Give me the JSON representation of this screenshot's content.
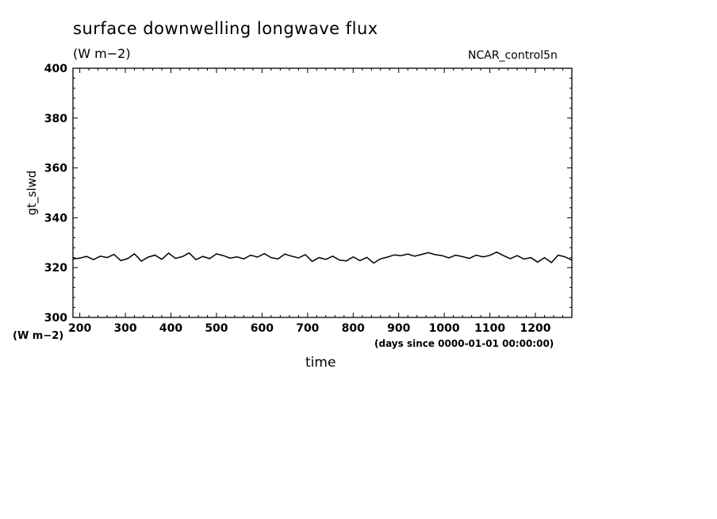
{
  "header": {
    "title": "surface downwelling longwave flux",
    "units": "(W m−2)",
    "run_name": "NCAR_control5n"
  },
  "axes": {
    "ylabel": "gt_slwd",
    "yunits": "(W m−2)",
    "xlabel": "time",
    "xunits": "(days since 0000-01-01 00:00:00)"
  },
  "chart_data": {
    "type": "line",
    "title": "surface downwelling longwave flux",
    "subtitle": "(W m−2)",
    "xlabel": "time",
    "ylabel": "gt_slwd",
    "xlim": [
      185,
      1280
    ],
    "ylim": [
      300,
      400
    ],
    "xticks": [
      200,
      300,
      400,
      500,
      600,
      700,
      800,
      900,
      1000,
      1100,
      1200
    ],
    "yticks": [
      300,
      320,
      340,
      360,
      380,
      400
    ],
    "grid": false,
    "series": [
      {
        "x": [
          185,
          200,
          215,
          230,
          245,
          260,
          275,
          290,
          305,
          320,
          335,
          350,
          365,
          380,
          395,
          410,
          425,
          440,
          455,
          470,
          485,
          500,
          515,
          530,
          545,
          560,
          575,
          590,
          605,
          620,
          635,
          650,
          665,
          680,
          695,
          710,
          725,
          740,
          755,
          770,
          785,
          800,
          815,
          830,
          845,
          860,
          875,
          890,
          905,
          920,
          935,
          950,
          965,
          980,
          995,
          1010,
          1025,
          1040,
          1055,
          1070,
          1085,
          1100,
          1115,
          1130,
          1145,
          1160,
          1175,
          1190,
          1205,
          1220,
          1235,
          1250,
          1265,
          1280
        ],
        "values": [
          323.5,
          323.8,
          324.5,
          323.2,
          324.6,
          324.0,
          325.3,
          322.8,
          323.6,
          325.5,
          322.6,
          324.2,
          325.0,
          323.3,
          325.8,
          323.7,
          324.4,
          325.9,
          323.2,
          324.5,
          323.6,
          325.5,
          324.8,
          323.8,
          324.3,
          323.5,
          325.0,
          324.2,
          325.6,
          324.0,
          323.5,
          325.4,
          324.6,
          323.9,
          325.2,
          322.5,
          324.0,
          323.3,
          324.6,
          323.0,
          322.7,
          324.3,
          322.8,
          324.1,
          321.8,
          323.5,
          324.2,
          325.1,
          324.8,
          325.4,
          324.6,
          325.3,
          326.0,
          325.2,
          324.8,
          323.9,
          325.0,
          324.4,
          323.7,
          325.0,
          324.3,
          324.9,
          326.2,
          324.8,
          323.6,
          324.8,
          323.4,
          324.0,
          322.2,
          324.0,
          322.0,
          325.0,
          324.3,
          323.0
        ]
      }
    ]
  }
}
